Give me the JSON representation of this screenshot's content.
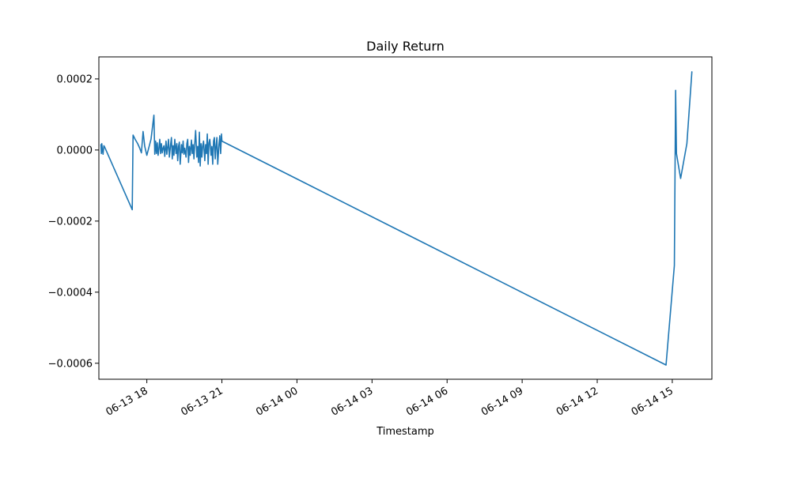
{
  "chart_data": {
    "type": "line",
    "title": "Daily Return",
    "xlabel": "Timestamp",
    "ylabel": "",
    "grid": false,
    "legend": "none",
    "x_axis": {
      "type": "datetime",
      "range": [
        "2024-06-13 16:05",
        "2024-06-14 16:35"
      ],
      "ticks": [
        {
          "value": "2024-06-13 18:00",
          "label": "06-13 18"
        },
        {
          "value": "2024-06-13 21:00",
          "label": "06-13 21"
        },
        {
          "value": "2024-06-14 00:00",
          "label": "06-14 00"
        },
        {
          "value": "2024-06-14 03:00",
          "label": "06-14 03"
        },
        {
          "value": "2024-06-14 06:00",
          "label": "06-14 06"
        },
        {
          "value": "2024-06-14 09:00",
          "label": "06-14 09"
        },
        {
          "value": "2024-06-14 12:00",
          "label": "06-14 12"
        },
        {
          "value": "2024-06-14 15:00",
          "label": "06-14 15"
        }
      ]
    },
    "y_axis": {
      "range": [
        -0.000645,
        0.000262
      ],
      "ticks": [
        {
          "value": 0.0002,
          "label": "0.0002"
        },
        {
          "value": 0.0,
          "label": "0.0000"
        },
        {
          "value": -0.0002,
          "label": "−0.0002"
        },
        {
          "value": -0.0004,
          "label": "−0.0004"
        },
        {
          "value": -0.0006,
          "label": "−0.0006"
        }
      ]
    },
    "series": [
      {
        "color": "#1f77b4",
        "x": [
          "2024-06-13 16:10",
          "2024-06-13 16:11",
          "2024-06-13 16:12",
          "2024-06-13 16:13",
          "2024-06-13 16:15",
          "2024-06-13 16:17",
          "2024-06-13 16:19",
          "2024-06-13 17:25",
          "2024-06-13 17:27",
          "2024-06-13 17:32",
          "2024-06-13 17:38",
          "2024-06-13 17:43",
          "2024-06-13 17:47",
          "2024-06-13 17:51",
          "2024-06-13 17:55",
          "2024-06-13 18:00",
          "2024-06-13 18:10",
          "2024-06-13 18:17",
          "2024-06-13 18:19",
          "2024-06-13 18:21",
          "2024-06-13 18:23",
          "2024-06-13 18:25",
          "2024-06-13 18:27",
          "2024-06-13 18:29",
          "2024-06-13 18:31",
          "2024-06-13 18:33",
          "2024-06-13 18:35",
          "2024-06-13 18:37",
          "2024-06-13 18:39",
          "2024-06-13 18:41",
          "2024-06-13 18:43",
          "2024-06-13 18:46",
          "2024-06-13 18:48",
          "2024-06-13 18:50",
          "2024-06-13 18:52",
          "2024-06-13 18:54",
          "2024-06-13 18:57",
          "2024-06-13 18:59",
          "2024-06-13 19:01",
          "2024-06-13 19:03",
          "2024-06-13 19:05",
          "2024-06-13 19:07",
          "2024-06-13 19:10",
          "2024-06-13 19:12",
          "2024-06-13 19:14",
          "2024-06-13 19:16",
          "2024-06-13 19:18",
          "2024-06-13 19:20",
          "2024-06-13 19:23",
          "2024-06-13 19:25",
          "2024-06-13 19:27",
          "2024-06-13 19:29",
          "2024-06-13 19:31",
          "2024-06-13 19:34",
          "2024-06-13 19:36",
          "2024-06-13 19:38",
          "2024-06-13 19:40",
          "2024-06-13 19:42",
          "2024-06-13 19:44",
          "2024-06-13 19:47",
          "2024-06-13 19:49",
          "2024-06-13 19:51",
          "2024-06-13 19:53",
          "2024-06-13 19:55",
          "2024-06-13 19:57",
          "2024-06-13 20:00",
          "2024-06-13 20:02",
          "2024-06-13 20:04",
          "2024-06-13 20:06",
          "2024-06-13 20:08",
          "2024-06-13 20:10",
          "2024-06-13 20:12",
          "2024-06-13 20:14",
          "2024-06-13 20:16",
          "2024-06-13 20:19",
          "2024-06-13 20:21",
          "2024-06-13 20:23",
          "2024-06-13 20:25",
          "2024-06-13 20:27",
          "2024-06-13 20:29",
          "2024-06-13 20:31",
          "2024-06-13 20:34",
          "2024-06-13 20:36",
          "2024-06-13 20:38",
          "2024-06-13 20:40",
          "2024-06-13 20:42",
          "2024-06-13 20:44",
          "2024-06-13 20:46",
          "2024-06-13 20:48",
          "2024-06-13 20:50",
          "2024-06-13 20:53",
          "2024-06-13 20:55",
          "2024-06-13 20:57",
          "2024-06-13 20:59",
          "2024-06-13 21:00",
          "2024-06-14 14:45",
          "2024-06-14 15:05",
          "2024-06-14 15:08",
          "2024-06-14 15:10",
          "2024-06-14 15:20",
          "2024-06-14 15:35",
          "2024-06-14 15:47"
        ],
        "y": [
          1.5e-05,
          -1e-05,
          1.8e-05,
          5e-06,
          -1.2e-05,
          1.2e-05,
          8e-06,
          -0.000168,
          4.2e-05,
          3e-05,
          1.8e-05,
          5e-06,
          -8e-06,
          5.2e-05,
          1e-05,
          -1.5e-05,
          3e-05,
          9.8e-05,
          -1.2e-05,
          2.5e-05,
          -1e-05,
          2e-05,
          -1.5e-05,
          5e-06,
          3e-05,
          -1e-05,
          1.8e-05,
          -8e-06,
          5e-06,
          1.2e-05,
          -1.8e-05,
          2.5e-05,
          -1.2e-05,
          8e-06,
          3e-05,
          -2e-05,
          1.5e-05,
          3.5e-05,
          -2.5e-05,
          1.2e-05,
          -1.5e-05,
          3e-05,
          -1e-05,
          1.8e-05,
          -3e-05,
          1e-05,
          2.2e-05,
          -4e-05,
          1.5e-05,
          -8e-06,
          2.5e-05,
          -1.2e-05,
          5e-06,
          -2e-05,
          1.8e-05,
          3e-05,
          -3.5e-05,
          1e-05,
          -1.5e-05,
          2.8e-05,
          -1e-05,
          1.5e-05,
          -2.5e-05,
          2e-05,
          5.5e-05,
          -2e-05,
          1e-05,
          -3.5e-05,
          5e-05,
          -4.5e-05,
          1.8e-05,
          -2e-05,
          1.2e-05,
          2.5e-05,
          -3e-05,
          1.5e-05,
          -1e-05,
          4.5e-05,
          -4e-05,
          2e-05,
          3e-05,
          -1.5e-05,
          1e-05,
          -4e-05,
          2.5e-05,
          3.5e-05,
          -2.5e-05,
          1e-05,
          3.5e-05,
          -4e-05,
          1.5e-05,
          4e-05,
          -1e-05,
          4.5e-05,
          2.5e-05,
          -0.000605,
          -0.000325,
          0.000168,
          -1e-05,
          -8e-05,
          1.8e-05,
          0.00022
        ]
      }
    ]
  }
}
